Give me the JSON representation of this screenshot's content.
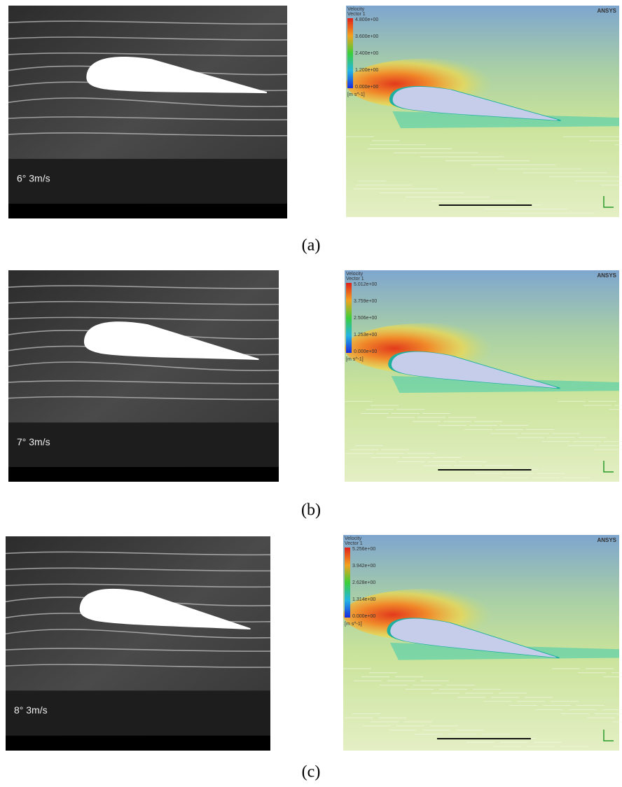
{
  "figures": [
    {
      "photo_label": "6° 3m/s",
      "legend": {
        "title": [
          "Velocity",
          "Vector 1"
        ],
        "ticks": [
          "4.800e+00",
          "3.600e+00",
          "2.400e+00",
          "1.200e+00",
          "0.000e+00"
        ],
        "unit": "[m s^-1]"
      },
      "logo": "ANSYS",
      "caption": "(a)"
    },
    {
      "photo_label": "7° 3m/s",
      "legend": {
        "title": [
          "Velocity",
          "Vector 1"
        ],
        "ticks": [
          "5.012e+00",
          "3.759e+00",
          "2.506e+00",
          "1.253e+00",
          "0.000e+00"
        ],
        "unit": "[m s^-1]"
      },
      "logo": "ANSYS",
      "caption": "(b)"
    },
    {
      "photo_label": "8° 3m/s",
      "legend": {
        "title": [
          "Velocity",
          "Vector 1"
        ],
        "ticks": [
          "5.256e+00",
          "3.942e+00",
          "2.628e+00",
          "1.314e+00",
          "0.000e+00"
        ],
        "unit": "[m s^-1]"
      },
      "logo": "ANSYS",
      "caption": "(c)"
    }
  ]
}
